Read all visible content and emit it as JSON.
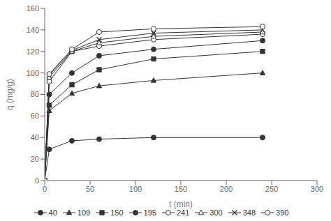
{
  "chart_data": {
    "type": "line",
    "xlabel": "t (min)",
    "ylabel": "q (mg/g)",
    "x": [
      0,
      5,
      30,
      60,
      120,
      240
    ],
    "xlim": [
      0,
      300
    ],
    "ylim": [
      0,
      160
    ],
    "xticks": [
      0,
      50,
      100,
      150,
      200,
      250,
      300
    ],
    "yticks": [
      0,
      20,
      40,
      60,
      80,
      100,
      120,
      140,
      160
    ],
    "grid": false,
    "legend": "bottom",
    "series": [
      {
        "name": "40",
        "color": "#333333",
        "marker": "circle",
        "values": [
          0,
          29,
          37,
          38.5,
          40,
          40
        ]
      },
      {
        "name": "109",
        "color": "#333333",
        "marker": "triangle",
        "values": [
          0,
          65,
          81,
          88,
          93,
          100
        ]
      },
      {
        "name": "150",
        "color": "#333333",
        "marker": "square",
        "values": [
          0,
          70,
          89,
          103,
          113,
          120
        ]
      },
      {
        "name": "195",
        "color": "#333333",
        "marker": "circle",
        "values": [
          0,
          80,
          100,
          116,
          122,
          130
        ]
      },
      {
        "name": "241",
        "color": "#333333",
        "marker": "open_circle",
        "values": [
          0,
          92,
          120,
          125,
          131,
          136
        ]
      },
      {
        "name": "300",
        "color": "#333333",
        "marker": "open_triangle",
        "values": [
          0,
          96,
          120,
          128,
          134,
          138
        ]
      },
      {
        "name": "348",
        "color": "#333333",
        "marker": "x",
        "values": [
          0,
          98,
          121,
          131,
          137,
          140
        ]
      },
      {
        "name": "390",
        "color": "#333333",
        "marker": "open_circle",
        "values": [
          0,
          99,
          122,
          138,
          141,
          143
        ]
      }
    ]
  }
}
